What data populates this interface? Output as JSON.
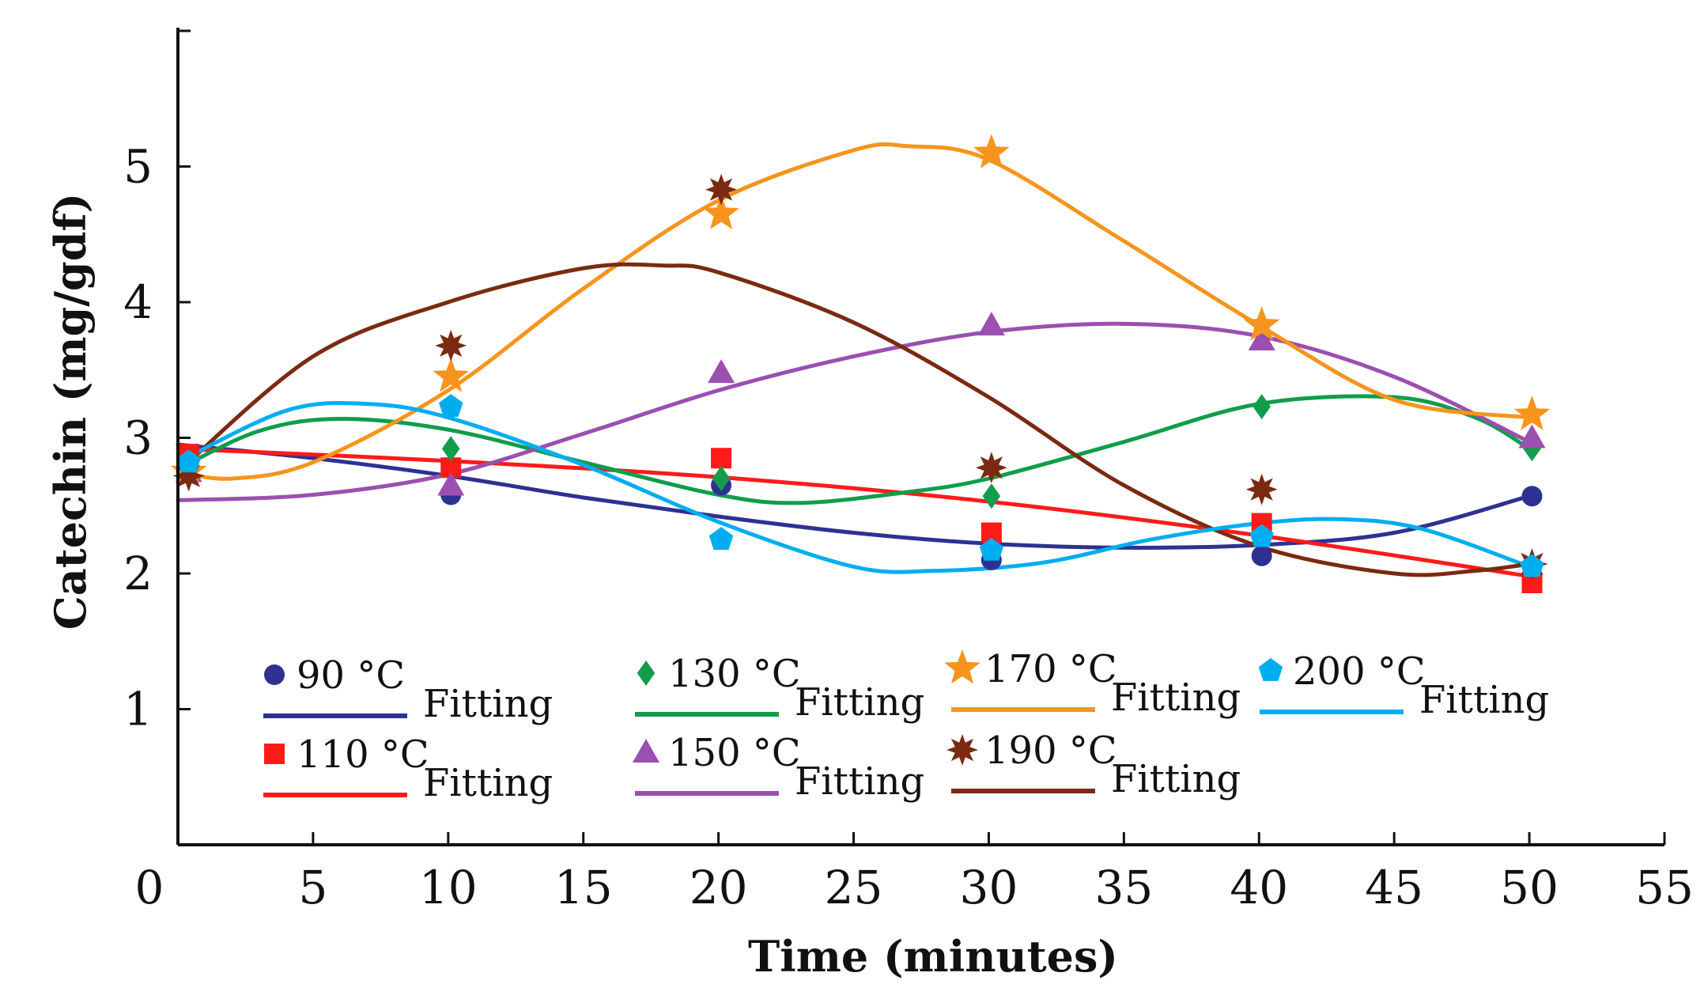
{
  "chart_data": {
    "type": "line",
    "xlabel": "Time (minutes)",
    "ylabel": "Catechin (mg/gdf)",
    "xlim": [
      0,
      55
    ],
    "ylim": [
      0,
      6
    ],
    "xticks": [
      "0",
      "5",
      "10",
      "15",
      "20",
      "25",
      "30",
      "35",
      "40",
      "45",
      "50",
      "55"
    ],
    "yticks": [
      "1",
      "2",
      "3",
      "4",
      "5"
    ],
    "grid": false,
    "legend_position": "bottom-left",
    "fitting_label": "Fitting",
    "x": [
      0,
      10,
      20,
      30,
      40,
      50
    ],
    "series": [
      {
        "name": "90 °C",
        "color": "#2e3192",
        "marker": "circle",
        "values": [
          2.87,
          2.58,
          2.65,
          2.1,
          2.13,
          2.57
        ],
        "fit": [
          [
            0,
            2.95
          ],
          [
            5,
            2.85
          ],
          [
            10,
            2.72
          ],
          [
            15,
            2.56
          ],
          [
            20,
            2.42
          ],
          [
            25,
            2.3
          ],
          [
            30,
            2.22
          ],
          [
            35,
            2.19
          ],
          [
            40,
            2.21
          ],
          [
            45,
            2.3
          ],
          [
            50,
            2.57
          ]
        ]
      },
      {
        "name": "110 °C",
        "color": "#ff1a1a",
        "marker": "square",
        "values": [
          2.88,
          2.78,
          2.85,
          2.3,
          2.37,
          1.93
        ],
        "fit": [
          [
            0,
            2.92
          ],
          [
            10,
            2.83
          ],
          [
            20,
            2.71
          ],
          [
            30,
            2.53
          ],
          [
            40,
            2.28
          ],
          [
            50,
            1.98
          ]
        ]
      },
      {
        "name": "130 °C",
        "color": "#119d4b",
        "marker": "diamond",
        "values": [
          2.77,
          2.92,
          2.7,
          2.57,
          3.23,
          2.92
        ],
        "fit": [
          [
            0,
            2.77
          ],
          [
            3,
            3.05
          ],
          [
            6,
            3.14
          ],
          [
            10,
            3.06
          ],
          [
            15,
            2.82
          ],
          [
            20,
            2.58
          ],
          [
            23,
            2.52
          ],
          [
            27,
            2.6
          ],
          [
            30,
            2.7
          ],
          [
            35,
            2.97
          ],
          [
            40,
            3.25
          ],
          [
            45,
            3.3
          ],
          [
            48,
            3.15
          ],
          [
            50,
            2.92
          ]
        ]
      },
      {
        "name": "150 °C",
        "color": "#9b4fb0",
        "marker": "triangle",
        "values": [
          2.75,
          2.65,
          3.48,
          3.83,
          3.72,
          3.0
        ],
        "fit": [
          [
            0,
            2.54
          ],
          [
            5,
            2.58
          ],
          [
            10,
            2.73
          ],
          [
            15,
            3.03
          ],
          [
            20,
            3.35
          ],
          [
            25,
            3.6
          ],
          [
            30,
            3.78
          ],
          [
            35,
            3.84
          ],
          [
            40,
            3.75
          ],
          [
            45,
            3.45
          ],
          [
            50,
            2.97
          ]
        ]
      },
      {
        "name": "170 °C",
        "color": "#f7941d",
        "marker": "star",
        "values": [
          2.75,
          3.45,
          4.65,
          5.1,
          3.83,
          3.17
        ],
        "fit": [
          [
            0,
            2.75
          ],
          [
            2,
            2.7
          ],
          [
            5,
            2.82
          ],
          [
            10,
            3.35
          ],
          [
            15,
            4.1
          ],
          [
            20,
            4.75
          ],
          [
            25,
            5.12
          ],
          [
            27,
            5.15
          ],
          [
            30,
            5.05
          ],
          [
            35,
            4.45
          ],
          [
            40,
            3.83
          ],
          [
            45,
            3.28
          ],
          [
            50,
            3.15
          ]
        ]
      },
      {
        "name": "190 °C",
        "color": "#7a2a10",
        "marker": "burst",
        "values": [
          2.72,
          3.68,
          4.83,
          2.78,
          2.62,
          2.07
        ],
        "fit": [
          [
            0,
            2.75
          ],
          [
            5,
            3.6
          ],
          [
            10,
            4.0
          ],
          [
            15,
            4.25
          ],
          [
            18,
            4.27
          ],
          [
            20,
            4.22
          ],
          [
            25,
            3.85
          ],
          [
            30,
            3.3
          ],
          [
            35,
            2.65
          ],
          [
            40,
            2.2
          ],
          [
            45,
            2.0
          ],
          [
            48,
            2.02
          ],
          [
            50,
            2.07
          ]
        ]
      },
      {
        "name": "200 °C",
        "color": "#00aeef",
        "marker": "pentagon",
        "values": [
          2.82,
          3.23,
          2.25,
          2.17,
          2.27,
          2.05
        ],
        "fit": [
          [
            0,
            2.82
          ],
          [
            4,
            3.2
          ],
          [
            7,
            3.25
          ],
          [
            10,
            3.15
          ],
          [
            15,
            2.8
          ],
          [
            20,
            2.38
          ],
          [
            25,
            2.05
          ],
          [
            28,
            2.02
          ],
          [
            32,
            2.08
          ],
          [
            36,
            2.25
          ],
          [
            40,
            2.37
          ],
          [
            43,
            2.4
          ],
          [
            46,
            2.33
          ],
          [
            50,
            2.05
          ]
        ]
      }
    ]
  }
}
